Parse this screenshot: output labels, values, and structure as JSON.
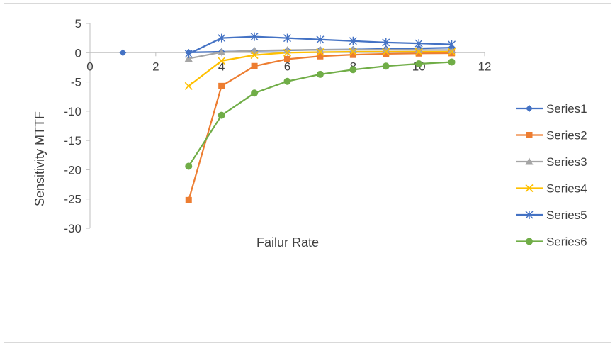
{
  "chart_data": {
    "type": "line",
    "title": "",
    "xlabel": "Failur Rate",
    "ylabel": "Sensitivity MTTF",
    "xlim": [
      0,
      12
    ],
    "ylim": [
      -30,
      5
    ],
    "xticks": [
      0,
      2,
      4,
      6,
      8,
      10,
      12
    ],
    "yticks": [
      5,
      0,
      -5,
      -10,
      -15,
      -20,
      -25,
      -30
    ],
    "grid": false,
    "legend_position": "right",
    "series": [
      {
        "name": "Series1",
        "color": "#4472c4",
        "marker": "diamond",
        "x": [
          1,
          3,
          4,
          5,
          6,
          7,
          8,
          9,
          10,
          11
        ],
        "y": [
          0,
          0.05,
          0.15,
          0.3,
          0.4,
          0.5,
          0.55,
          0.65,
          0.75,
          0.85
        ]
      },
      {
        "name": "Series2",
        "color": "#ed7d31",
        "marker": "square",
        "x": [
          3,
          4,
          5,
          6,
          7,
          8,
          9,
          10,
          11
        ],
        "y": [
          -25.2,
          -5.7,
          -2.3,
          -1.1,
          -0.6,
          -0.35,
          -0.2,
          -0.12,
          -0.08
        ]
      },
      {
        "name": "Series3",
        "color": "#a5a5a5",
        "marker": "triangle",
        "x": [
          3,
          4,
          5,
          6,
          7,
          8,
          9,
          10,
          11
        ],
        "y": [
          -1.0,
          0.1,
          0.35,
          0.45,
          0.5,
          0.5,
          0.5,
          0.48,
          0.45
        ]
      },
      {
        "name": "Series4",
        "color": "#ffc000",
        "marker": "x",
        "x": [
          3,
          4,
          5,
          6,
          7,
          8,
          9,
          10,
          11
        ],
        "y": [
          -5.7,
          -1.4,
          -0.4,
          0.0,
          0.1,
          0.15,
          0.15,
          0.15,
          0.15
        ]
      },
      {
        "name": "Series5",
        "color": "#4472c4",
        "marker": "star",
        "x": [
          3,
          4,
          5,
          6,
          7,
          8,
          9,
          10,
          11
        ],
        "y": [
          -0.2,
          2.5,
          2.75,
          2.5,
          2.25,
          2.0,
          1.75,
          1.6,
          1.4
        ]
      },
      {
        "name": "Series6",
        "color": "#70ad47",
        "marker": "circle",
        "x": [
          3,
          4,
          5,
          6,
          7,
          8,
          9,
          10,
          11
        ],
        "y": [
          -19.4,
          -10.7,
          -6.9,
          -4.9,
          -3.7,
          -2.9,
          -2.3,
          -1.9,
          -1.6
        ]
      }
    ]
  }
}
